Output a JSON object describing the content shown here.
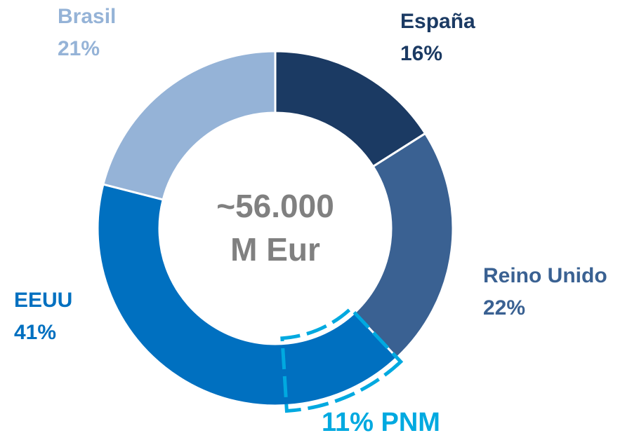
{
  "chart_data": {
    "type": "pie",
    "donut": true,
    "categories": [
      "España",
      "Reino Unido",
      "EEUU",
      "Brasil"
    ],
    "values": [
      16,
      22,
      41,
      21
    ],
    "value_labels": [
      "16%",
      "22%",
      "41%",
      "21%"
    ],
    "colors": [
      "#1b3a63",
      "#3a6192",
      "#0070c0",
      "#95b3d7"
    ],
    "center_text": [
      "~56.000",
      "M Eur"
    ],
    "highlight": {
      "value": 11,
      "label": "11% PNM",
      "color": "#00a9e0"
    }
  }
}
